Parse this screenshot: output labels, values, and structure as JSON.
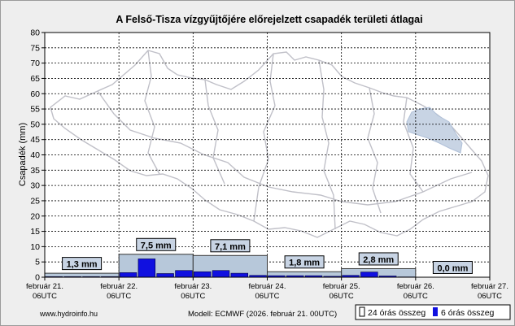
{
  "chart_data": {
    "type": "bar",
    "title": "A Felső-Tisza vízgyűjtőjére előrejelzett csapadék területi átlagai",
    "ylabel": "Csapadék (mm)",
    "ylim": [
      0,
      80
    ],
    "y_tick_step": 5,
    "grid": true,
    "x_ticks": [
      {
        "date": "február 21.",
        "time": "06UTC"
      },
      {
        "date": "február 22.",
        "time": "06UTC"
      },
      {
        "date": "február 23.",
        "time": "06UTC"
      },
      {
        "date": "február 24.",
        "time": "06UTC"
      },
      {
        "date": "február 25.",
        "time": "06UTC"
      },
      {
        "date": "február 26.",
        "time": "06UTC"
      },
      {
        "date": "február 27.",
        "time": "06UTC"
      }
    ],
    "series": [
      {
        "name": "24 órás összeg",
        "color": "#b7c8da",
        "values": [
          1.3,
          7.5,
          7.1,
          1.8,
          2.8,
          0.0
        ],
        "labels": [
          "1,3 mm",
          "7,5 mm",
          "7,1 mm",
          "1,8 mm",
          "2,8 mm",
          "0,0 mm"
        ]
      },
      {
        "name": "6 órás összeg",
        "color": "#1010e0",
        "values": [
          0.2,
          0.2,
          0.2,
          0.2,
          1.5,
          6.0,
          1.2,
          2.2,
          1.8,
          2.2,
          1.3,
          0.6,
          0.5,
          0.5,
          0.5,
          0.3,
          0.6,
          1.7,
          0.4,
          0.1,
          0.0,
          0.0,
          0.0,
          0.0
        ]
      }
    ]
  },
  "footer": {
    "website": "www.hydroinfo.hu",
    "model": "Modell: ECMWF (2026. február 21. 00UTC)"
  },
  "colors": {
    "map_outline": "#c0c0c8",
    "map_highlight": "#c8d4e4",
    "plot_bg": "#ffffff"
  }
}
